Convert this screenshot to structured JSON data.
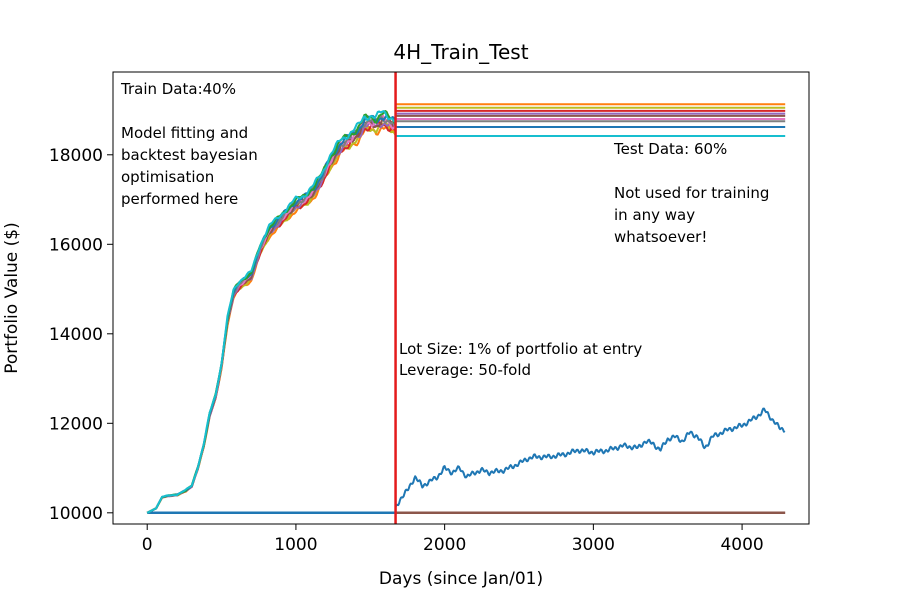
{
  "chart_data": {
    "type": "line",
    "title": "4H_Train_Test",
    "xlabel": "Days (since Jan/01)",
    "ylabel": "Portfolio Value ($)",
    "xlim": [
      -230,
      4450
    ],
    "ylim": [
      9750,
      19850
    ],
    "xticks": [
      0,
      1000,
      2000,
      3000,
      4000
    ],
    "yticks": [
      10000,
      12000,
      14000,
      16000,
      18000
    ],
    "split_x": 1670,
    "split_color": "#e41a1c",
    "grid": false,
    "annotations": {
      "train": [
        "Train Data:40%",
        "",
        "Model fitting and",
        "backtest bayesian",
        "optimisation",
        "performed here"
      ],
      "test": [
        "Test Data: 60%",
        "",
        "Not used for training",
        "in any way",
        "whatsoever!"
      ],
      "lot": [
        "Lot Size: 1% of portfolio at entry",
        "Leverage: 50-fold"
      ]
    },
    "train_trend": {
      "x": [
        0,
        60,
        100,
        140,
        200,
        260,
        300,
        340,
        380,
        420,
        460,
        500,
        540,
        580,
        620,
        660,
        700,
        760,
        820,
        880,
        940,
        1000,
        1060,
        1120,
        1180,
        1220,
        1260,
        1300,
        1340,
        1380,
        1420,
        1460,
        1500,
        1540,
        1580,
        1620,
        1670
      ],
      "y": [
        10000,
        10100,
        10350,
        10380,
        10400,
        10500,
        10600,
        11000,
        11500,
        12200,
        12600,
        13300,
        14300,
        14900,
        15100,
        15200,
        15300,
        15900,
        16300,
        16500,
        16700,
        16900,
        17000,
        17200,
        17500,
        17800,
        18000,
        18200,
        18300,
        18400,
        18500,
        18700,
        18750,
        18700,
        18800,
        18750,
        18650
      ]
    },
    "test_levels": [
      19130,
      19050,
      18980,
      18920,
      18870,
      18800,
      18750,
      18620,
      18420
    ],
    "series_colors": [
      "#ff7f0e",
      "#bcbd22",
      "#d62728",
      "#9467bd",
      "#8c564b",
      "#e377c2",
      "#7f7f7f",
      "#1f77b4",
      "#2ca02c",
      "#17becf"
    ],
    "flat_lines": [
      {
        "name": "",
        "color": "#1f77b4",
        "x": [
          0,
          1670
        ],
        "y": [
          10000,
          10000
        ]
      },
      {
        "name": "",
        "color": "#8c564b",
        "x": [
          1670,
          4290
        ],
        "y": [
          10000,
          10000
        ]
      }
    ],
    "test_series": {
      "color": "#1f77b4",
      "x": [
        1670,
        1700,
        1750,
        1800,
        1850,
        1900,
        1950,
        2000,
        2050,
        2100,
        2150,
        2200,
        2250,
        2300,
        2400,
        2500,
        2550,
        2600,
        2700,
        2800,
        2900,
        3000,
        3100,
        3200,
        3300,
        3350,
        3400,
        3450,
        3500,
        3550,
        3600,
        3650,
        3700,
        3750,
        3800,
        3900,
        4000,
        4050,
        4100,
        4150,
        4200,
        4250,
        4290
      ],
      "y": [
        10100,
        10300,
        10500,
        10800,
        10600,
        10700,
        10800,
        11000,
        10900,
        11000,
        10800,
        10900,
        10950,
        10900,
        10950,
        11100,
        11200,
        11250,
        11250,
        11300,
        11400,
        11350,
        11400,
        11500,
        11450,
        11600,
        11550,
        11400,
        11650,
        11700,
        11600,
        11800,
        11700,
        11450,
        11700,
        11850,
        11950,
        12050,
        12150,
        12300,
        12100,
        11900,
        11850
      ]
    }
  }
}
